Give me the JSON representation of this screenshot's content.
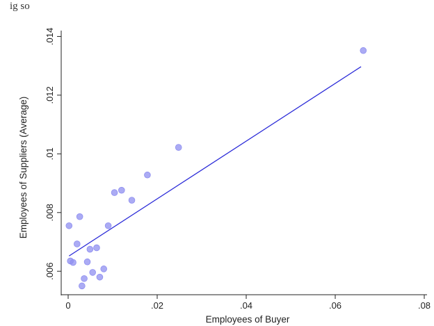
{
  "header_fragment": "ig so",
  "chart_data": {
    "type": "scatter",
    "xlabel": "Employees of Buyer",
    "ylabel": "Employees of Suppliers (Average)",
    "xlim": [
      0,
      0.08
    ],
    "ylim": [
      0.0052,
      0.0142
    ],
    "x_ticks": [
      0,
      0.02,
      0.04,
      0.06,
      0.08
    ],
    "x_tick_labels": [
      "0",
      ".02",
      ".04",
      ".06",
      ".08"
    ],
    "y_ticks": [
      0.006,
      0.008,
      0.01,
      0.012,
      0.014
    ],
    "y_tick_labels": [
      ".006",
      ".008",
      ".01",
      ".012",
      ".014"
    ],
    "grid": false,
    "legend": "none",
    "colors": {
      "points": "#8f8ff0",
      "fit_line": "#2a2ad8",
      "axis": "#222222"
    },
    "series": [
      {
        "kind": "points",
        "points": [
          {
            "x": 0.0002,
            "y": 0.00755
          },
          {
            "x": 0.0005,
            "y": 0.00635
          },
          {
            "x": 0.0011,
            "y": 0.0063
          },
          {
            "x": 0.002,
            "y": 0.00693
          },
          {
            "x": 0.0026,
            "y": 0.00786
          },
          {
            "x": 0.0031,
            "y": 0.0055
          },
          {
            "x": 0.0036,
            "y": 0.00575
          },
          {
            "x": 0.0043,
            "y": 0.00632
          },
          {
            "x": 0.0049,
            "y": 0.00675
          },
          {
            "x": 0.0055,
            "y": 0.00596
          },
          {
            "x": 0.0064,
            "y": 0.0068
          },
          {
            "x": 0.0071,
            "y": 0.0058
          },
          {
            "x": 0.008,
            "y": 0.00608
          },
          {
            "x": 0.009,
            "y": 0.00755
          },
          {
            "x": 0.0104,
            "y": 0.00868
          },
          {
            "x": 0.012,
            "y": 0.00876
          },
          {
            "x": 0.0143,
            "y": 0.00842
          },
          {
            "x": 0.0178,
            "y": 0.00928
          },
          {
            "x": 0.0248,
            "y": 0.01022
          },
          {
            "x": 0.0663,
            "y": 0.01352
          }
        ]
      },
      {
        "kind": "fitted-line",
        "x": [
          0.0002,
          0.0658
        ],
        "y": [
          0.00652,
          0.01297
        ]
      }
    ]
  }
}
